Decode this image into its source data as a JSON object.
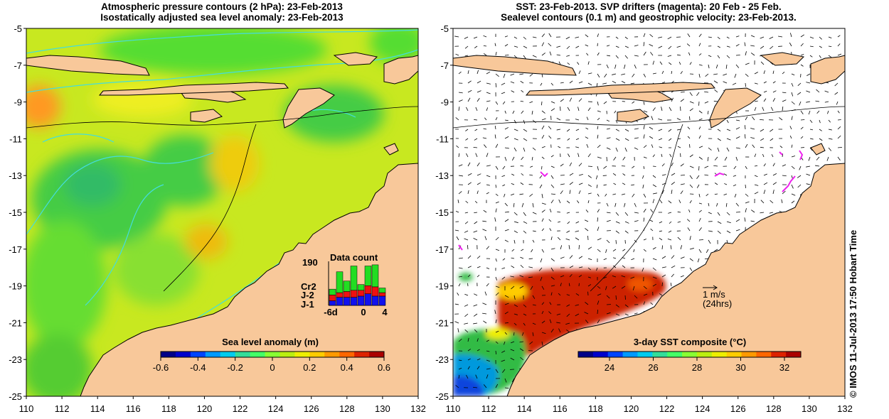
{
  "left_panel": {
    "title_line1": "Atmospheric pressure contours (2 hPa): 23-Feb-2013",
    "title_line2": "Isostatically adjusted sea level anomaly: 23-Feb-2013",
    "colorbar": {
      "title": "Sea level anomaly (m)",
      "ticks": [
        "-0.6",
        "-0.4",
        "-0.2",
        "0",
        "0.2",
        "0.4",
        "0.6"
      ],
      "colors": [
        "#000088",
        "#0000cc",
        "#0044ff",
        "#0099ff",
        "#00ccee",
        "#33dd99",
        "#44ff66",
        "#88ff33",
        "#bbee11",
        "#eeee00",
        "#ffcc00",
        "#ff9900",
        "#ff6600",
        "#dd2200",
        "#aa0000"
      ]
    },
    "data_count": {
      "title": "Data count",
      "max_label": "190",
      "series": [
        {
          "name": "Cr2",
          "color": "#22dd22"
        },
        {
          "name": "J-2",
          "color": "#ee1111"
        },
        {
          "name": "J-1",
          "color": "#1111ee"
        }
      ],
      "x_ticks": [
        "-6d",
        "0",
        "4"
      ],
      "bars": [
        {
          "j1": 20,
          "j2": 25,
          "cr2": 25
        },
        {
          "j1": 35,
          "j2": 20,
          "cr2": 90
        },
        {
          "j1": 35,
          "j2": 25,
          "cr2": 45
        },
        {
          "j1": 35,
          "j2": 30,
          "cr2": 105
        },
        {
          "j1": 40,
          "j2": 25,
          "cr2": 25
        },
        {
          "j1": 50,
          "j2": 35,
          "cr2": 85
        },
        {
          "j1": 40,
          "j2": 40,
          "cr2": 95
        },
        {
          "j1": 40,
          "j2": 15,
          "cr2": 20
        }
      ]
    }
  },
  "right_panel": {
    "title_line1": "SST: 23-Feb-2013. SVP drifters (magenta): 20 Feb - 25 Feb.",
    "title_line2": "Sealevel contours (0.1 m) and geostrophic velocity: 23-Feb-2013.",
    "colorbar": {
      "title": "3-day SST composite (°C)",
      "ticks": [
        "24",
        "26",
        "28",
        "30",
        "32"
      ],
      "colors": [
        "#000088",
        "#0000cc",
        "#0044ff",
        "#0099ff",
        "#00ccee",
        "#33dd99",
        "#44ff66",
        "#88ff33",
        "#bbee11",
        "#eeee00",
        "#ffcc00",
        "#ff9900",
        "#ff6600",
        "#dd2200",
        "#aa0000"
      ]
    },
    "scale_label": "1 m/s",
    "scale_sublabel": "(24hrs)"
  },
  "axes": {
    "lat_labels": [
      "-5",
      "-7",
      "-9",
      "-11",
      "-13",
      "-15",
      "-17",
      "-19",
      "-21",
      "-23",
      "-25"
    ],
    "lon_labels": [
      "110",
      "112",
      "114",
      "116",
      "118",
      "120",
      "122",
      "124",
      "126",
      "128",
      "130",
      "132"
    ]
  },
  "side_text": "© IMOS 11-Jul-2013 17:50 Hobart Time",
  "colors": {
    "land": "#f8c89a",
    "coast": "#000000",
    "contour": "#44dddd",
    "drifter": "#ee22ee"
  }
}
